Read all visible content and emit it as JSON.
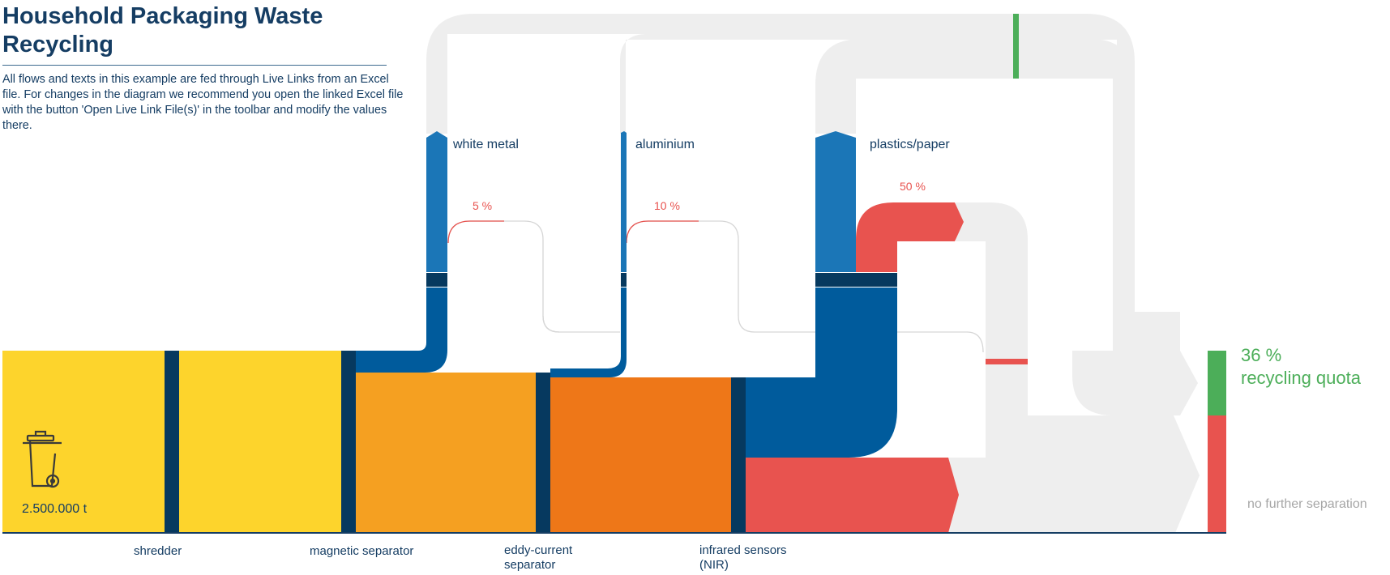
{
  "header": {
    "title": "Household Packaging Waste Recycling",
    "description": "All flows and texts in this example are fed through Live Links from an Excel file. For changes in the diagram we recommend you open the linked Excel file with the button 'Open Live Link File(s)' in the toolbar and modify the values there."
  },
  "input": {
    "amount": "2.500.000 t",
    "icon": "trash-bin-icon"
  },
  "stages": {
    "shredder": "shredder",
    "magnetic": "magnetic separator",
    "eddy_line1": "eddy-current",
    "eddy_line2": "separator",
    "nir_line1": "infrared sensors",
    "nir_line2": "(NIR)"
  },
  "outputs": {
    "white_metal": {
      "label": "white metal",
      "reject_pct": "5 %"
    },
    "aluminium": {
      "label": "aluminium",
      "reject_pct": "10 %"
    },
    "plastics_paper": {
      "label": "plastics/paper",
      "reject_pct": "50 %"
    }
  },
  "results": {
    "recycling_pct": "36 %",
    "recycling_label": "recycling quota",
    "no_separation_label": "no further separation"
  },
  "colors": {
    "yellow": "#fdd42c",
    "orange_light": "#f5a021",
    "orange": "#ee7718",
    "blue_dark": "#06395f",
    "blue_flow": "#1b76b7",
    "blue_deep": "#005b9c",
    "red": "#e8534f",
    "green": "#4cae59",
    "gray": "#eeeeee"
  }
}
